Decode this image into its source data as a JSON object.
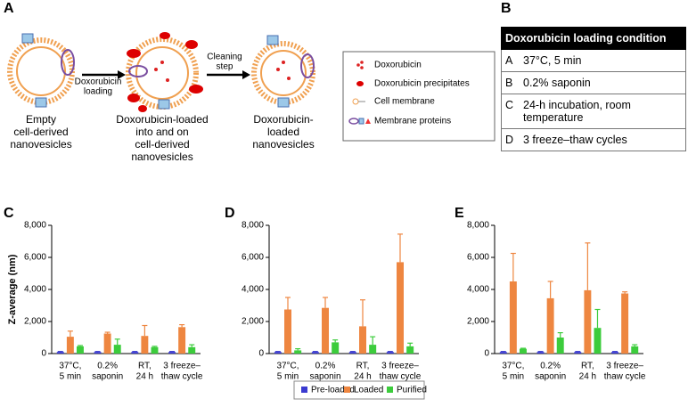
{
  "panel_labels": [
    "A",
    "B",
    "C",
    "D",
    "E"
  ],
  "diagram": {
    "stages": [
      [
        "Empty",
        "cell-derived",
        "nanovesicles"
      ],
      [
        "Doxorubicin-loaded",
        "into and on",
        "cell-derived",
        "nanovesicles"
      ],
      [
        "Doxorubicin-",
        "loaded",
        "nanovesicles"
      ]
    ],
    "steps": [
      [
        "Doxorubicin",
        "loading"
      ],
      [
        "Cleaning",
        "step"
      ]
    ],
    "legend": [
      "Doxorubicin",
      "Doxorubicin precipitates",
      "Cell membrane",
      "Membrane proteins"
    ]
  },
  "table": {
    "header": "Doxorubicin loading condition",
    "rows": [
      [
        "A",
        "37°C, 5 min"
      ],
      [
        "B",
        "0.2% saponin"
      ],
      [
        "C",
        "24-h incubation, room temperature"
      ],
      [
        "D",
        "3 freeze–thaw cycles"
      ]
    ]
  },
  "chart_data": [
    {
      "type": "bar",
      "y_label": "Z-average (nm)",
      "categories": [
        [
          "37°C,",
          "5 min"
        ],
        [
          "0.2%",
          "saponin"
        ],
        [
          "RT,",
          "24 h"
        ],
        [
          "3 freeze–",
          "thaw cycle"
        ]
      ],
      "ylim": [
        0,
        8000
      ],
      "yticks": [
        0,
        {
          "value": 2000,
          "label": "2,000"
        },
        {
          "value": 4000,
          "label": "4,000"
        },
        {
          "value": 6000,
          "label": "6,000"
        },
        {
          "value": 8000,
          "label": "8,000"
        }
      ],
      "series": [
        {
          "name": "Pre-loaded",
          "color": "#3a3ad0",
          "values": [
            100,
            100,
            100,
            100
          ],
          "errors": [
            30,
            30,
            30,
            30
          ]
        },
        {
          "name": "Loaded",
          "color": "#ee8640",
          "values": [
            1050,
            1250,
            1100,
            1650
          ],
          "errors": [
            350,
            80,
            650,
            150
          ]
        },
        {
          "name": "Purified",
          "color": "#3ccc3c",
          "values": [
            450,
            550,
            400,
            400
          ],
          "errors": [
            50,
            350,
            50,
            150
          ]
        }
      ]
    },
    {
      "type": "bar",
      "categories": [
        [
          "37°C,",
          "5 min"
        ],
        [
          "0.2%",
          "saponin"
        ],
        [
          "RT,",
          "24 h"
        ],
        [
          "3 freeze–",
          "thaw cycle"
        ]
      ],
      "ylim": [
        0,
        8000
      ],
      "yticks": [
        0,
        {
          "value": 2000,
          "label": "2,000"
        },
        {
          "value": 4000,
          "label": "4,000"
        },
        {
          "value": 6000,
          "label": "6,000"
        },
        {
          "value": 8000,
          "label": "8,000"
        }
      ],
      "series": [
        {
          "name": "Pre-loaded",
          "color": "#3a3ad0",
          "values": [
            100,
            100,
            100,
            100
          ],
          "errors": [
            30,
            30,
            30,
            30
          ]
        },
        {
          "name": "Loaded",
          "color": "#ee8640",
          "values": [
            2750,
            2850,
            1700,
            5700
          ],
          "errors": [
            750,
            650,
            1650,
            1750
          ]
        },
        {
          "name": "Purified",
          "color": "#3ccc3c",
          "values": [
            200,
            700,
            550,
            450
          ],
          "errors": [
            100,
            150,
            500,
            200
          ]
        }
      ]
    },
    {
      "type": "bar",
      "categories": [
        [
          "37°C,",
          "5 min"
        ],
        [
          "0.2%",
          "saponin"
        ],
        [
          "RT,",
          "24 h"
        ],
        [
          "3 freeze–",
          "thaw cycle"
        ]
      ],
      "ylim": [
        0,
        8000
      ],
      "yticks": [
        0,
        {
          "value": 2000,
          "label": "2,000"
        },
        {
          "value": 4000,
          "label": "4,000"
        },
        {
          "value": 6000,
          "label": "6,000"
        },
        {
          "value": 8000,
          "label": "8,000"
        }
      ],
      "series": [
        {
          "name": "Pre-loaded",
          "color": "#3a3ad0",
          "values": [
            100,
            100,
            100,
            100
          ],
          "errors": [
            30,
            30,
            30,
            30
          ]
        },
        {
          "name": "Loaded",
          "color": "#ee8640",
          "values": [
            4500,
            3450,
            3950,
            3750
          ],
          "errors": [
            1750,
            1050,
            2950,
            100
          ]
        },
        {
          "name": "Purified",
          "color": "#3ccc3c",
          "values": [
            300,
            1000,
            1600,
            450
          ],
          "errors": [
            30,
            300,
            1150,
            100
          ]
        }
      ]
    }
  ]
}
